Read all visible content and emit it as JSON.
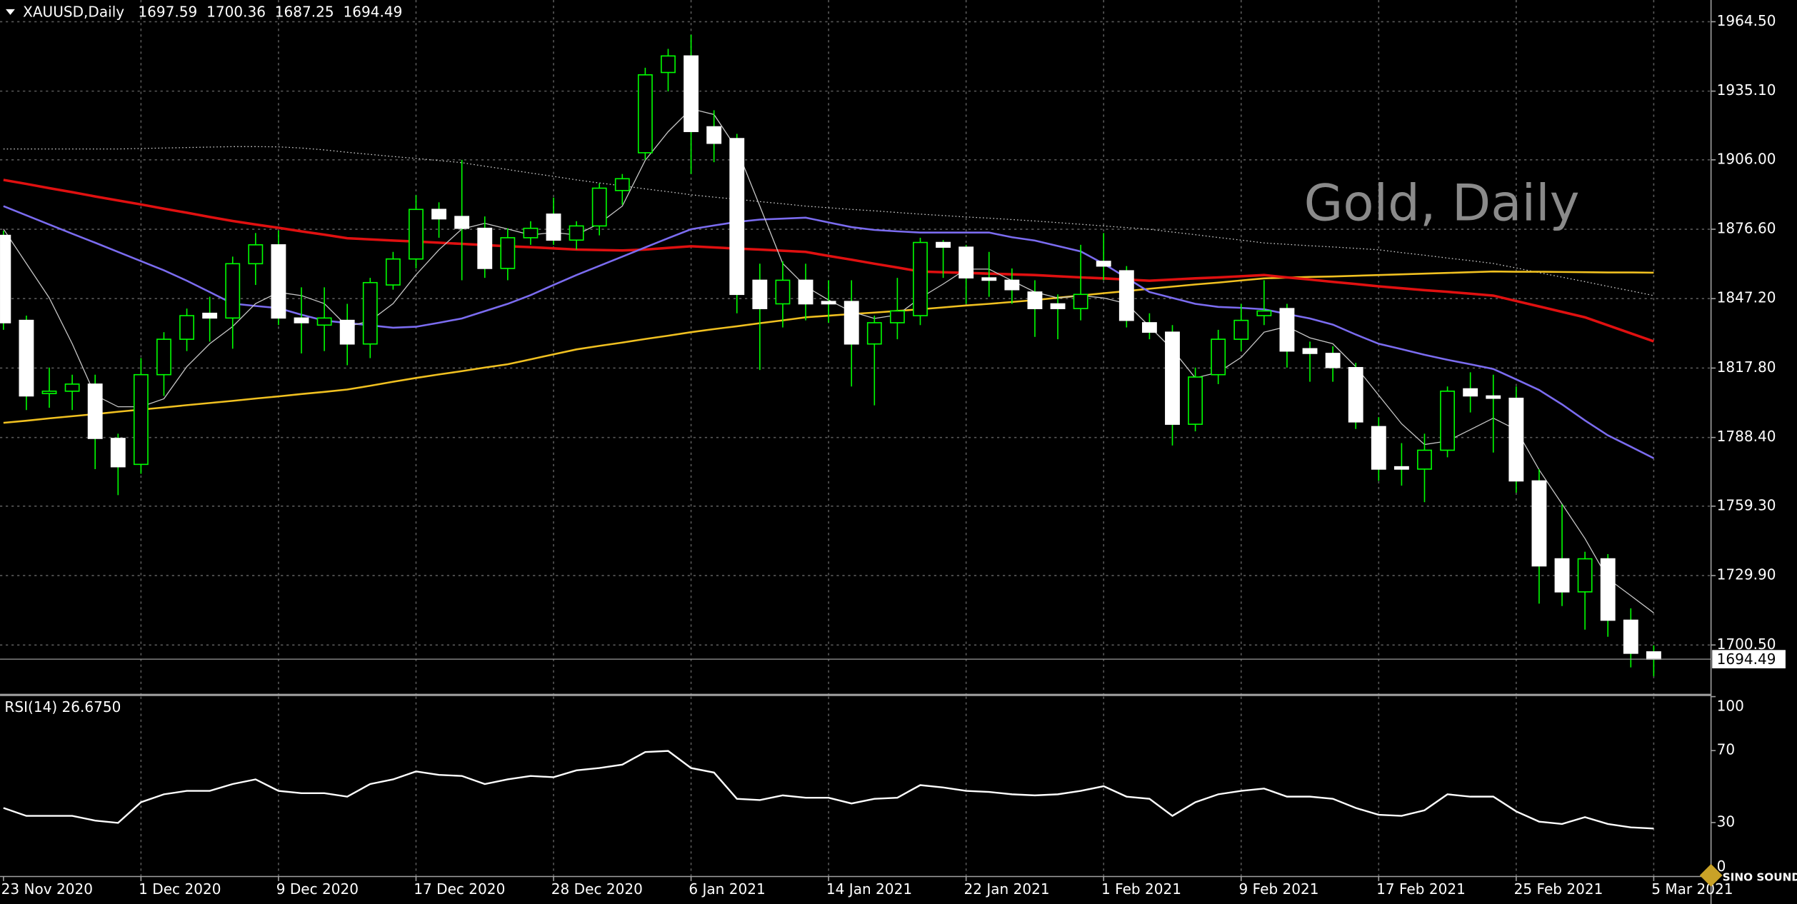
{
  "chart_data": [
    {
      "type": "candlestick",
      "title": "XAUUSD,Daily",
      "watermark": "Gold, Daily",
      "categories": [
        "23 Nov 2020",
        null,
        null,
        null,
        null,
        null,
        "1 Dec 2020",
        null,
        null,
        null,
        null,
        null,
        "9 Dec 2020",
        null,
        null,
        null,
        null,
        null,
        "17 Dec 2020",
        null,
        null,
        null,
        null,
        null,
        "28 Dec 2020",
        null,
        null,
        null,
        null,
        null,
        "6 Jan 2021",
        null,
        null,
        null,
        null,
        null,
        "14 Jan 2021",
        null,
        null,
        null,
        null,
        null,
        "22 Jan 2021",
        null,
        null,
        null,
        null,
        null,
        "1 Feb 2021",
        null,
        null,
        null,
        null,
        null,
        "9 Feb 2021",
        null,
        null,
        null,
        null,
        null,
        "17 Feb 2021",
        null,
        null,
        null,
        null,
        null,
        "25 Feb 2021",
        null,
        null,
        null,
        null,
        null,
        "5 Mar 2021"
      ],
      "open": [
        1874,
        1838,
        1807,
        1808,
        1811,
        1788,
        1777,
        1815,
        1830,
        1841,
        1839,
        1862,
        1870,
        1839,
        1836,
        1838,
        1828,
        1853,
        1864,
        1885,
        1882,
        1877,
        1860,
        1873,
        1883,
        1872,
        1878,
        1893,
        1909,
        1943,
        1950,
        1920,
        1915,
        1855,
        1845,
        1855,
        1846,
        1846,
        1828,
        1837,
        1840,
        1871,
        1869,
        1856,
        1855,
        1850,
        1845,
        1843,
        1863,
        1859,
        1837,
        1833,
        1794,
        1815,
        1830,
        1840,
        1843,
        1826,
        1824,
        1818,
        1793,
        1776,
        1775,
        1783,
        1809,
        1806,
        1805,
        1770,
        1737,
        1723,
        1737,
        1711,
        1697.59
      ],
      "high": [
        1876,
        1840,
        1818,
        1815,
        1815,
        1790,
        1822,
        1833,
        1843,
        1848,
        1865,
        1875,
        1876,
        1852,
        1852,
        1845,
        1856,
        1867,
        1891,
        1888,
        1906,
        1882,
        1877,
        1880,
        1890,
        1880,
        1896,
        1900,
        1945,
        1953,
        1959,
        1927,
        1917,
        1862,
        1863,
        1862,
        1855,
        1855,
        1840,
        1856,
        1873,
        1872,
        1870,
        1867,
        1860,
        1855,
        1849,
        1870,
        1875,
        1861,
        1841,
        1836,
        1818,
        1834,
        1845,
        1855,
        1845,
        1829,
        1827,
        1820,
        1797,
        1786,
        1790,
        1810,
        1816,
        1815,
        1810,
        1775,
        1760,
        1740,
        1739,
        1716,
        1700.36
      ],
      "low": [
        1834,
        1800,
        1801,
        1800,
        1775,
        1764,
        1773,
        1806,
        1825,
        1829,
        1826,
        1853,
        1836,
        1824,
        1825,
        1819,
        1822,
        1851,
        1860,
        1873,
        1855,
        1856,
        1855,
        1870,
        1870,
        1868,
        1874,
        1887,
        1906,
        1935,
        1900,
        1905,
        1841,
        1817,
        1835,
        1838,
        1837,
        1810,
        1802,
        1830,
        1836,
        1856,
        1845,
        1848,
        1845,
        1831,
        1830,
        1838,
        1855,
        1835,
        1830,
        1785,
        1791,
        1811,
        1825,
        1836,
        1818,
        1812,
        1812,
        1792,
        1770,
        1768,
        1761,
        1780,
        1799,
        1782,
        1765,
        1718,
        1717,
        1707,
        1704,
        1691,
        1687.25
      ],
      "close": [
        1837,
        1806,
        1808,
        1811,
        1788,
        1776,
        1815,
        1830,
        1840,
        1839,
        1862,
        1870,
        1839,
        1837,
        1839,
        1828,
        1854,
        1864,
        1885,
        1881,
        1877,
        1860,
        1873,
        1877,
        1872,
        1878,
        1894,
        1898,
        1942,
        1950,
        1918,
        1913,
        1849,
        1843,
        1855,
        1845,
        1845,
        1828,
        1837,
        1842,
        1871,
        1869,
        1856,
        1855,
        1851,
        1843,
        1843,
        1849,
        1861,
        1838,
        1833,
        1794,
        1814,
        1830,
        1838,
        1842,
        1825,
        1824,
        1818,
        1795,
        1775,
        1775,
        1783,
        1808,
        1806,
        1805,
        1770,
        1734,
        1723,
        1737,
        1711,
        1697,
        1694.49
      ],
      "colors": {
        "up": "#000000",
        "up_border": "#00ff00",
        "down": "#ffffff",
        "down_border": "#ffffff",
        "wick": "#00ff00"
      },
      "indicators": [
        {
          "color": "#d0d0d0",
          "style": "dotted",
          "width": 0.8,
          "values": [
            1910.6,
            1910.6,
            1910.6,
            1910.6,
            1910.6,
            1910.6,
            1910.8,
            1911.0,
            1911.2,
            1911.4,
            1911.6,
            1911.6,
            1911.5,
            1911.0,
            1910.2,
            1909.2,
            1908.3,
            1907.4,
            1906.6,
            1905.7,
            1904.8,
            1903.3,
            1901.9,
            1900.4,
            1899.0,
            1897.5,
            1896.2,
            1895.0,
            1893.7,
            1892.5,
            1891.2,
            1890.2,
            1889.3,
            1888.3,
            1887.4,
            1886.4,
            1885.7,
            1885.0,
            1884.4,
            1883.7,
            1883.0,
            1882.4,
            1881.8,
            1881.3,
            1880.7,
            1880.1,
            1879.4,
            1878.7,
            1878.0,
            1877.3,
            1876.6,
            1875.4,
            1874.3,
            1873.1,
            1872.0,
            1870.8,
            1870.2,
            1869.6,
            1869.1,
            1868.5,
            1867.9,
            1866.7,
            1865.6,
            1864.4,
            1863.3,
            1862.1,
            1860.2,
            1858.2,
            1856.3,
            1854.4,
            1852.4,
            1850.5,
            1848.5
          ]
        },
        {
          "color": "#f0c020",
          "style": "solid",
          "width": 1.6,
          "values": [
            1794.6,
            1795.5,
            1796.5,
            1797.4,
            1798.3,
            1799.3,
            1800.2,
            1801.1,
            1802.1,
            1803.0,
            1803.9,
            1804.9,
            1805.8,
            1806.8,
            1807.7,
            1808.7,
            1810.3,
            1812.0,
            1813.6,
            1815.1,
            1816.5,
            1818.0,
            1819.4,
            1821.5,
            1823.6,
            1825.7,
            1827.2,
            1828.6,
            1830.1,
            1831.5,
            1833.0,
            1834.3,
            1835.5,
            1836.8,
            1838.0,
            1839.3,
            1840.0,
            1840.7,
            1841.3,
            1842.0,
            1842.7,
            1843.5,
            1844.3,
            1845.0,
            1845.8,
            1846.6,
            1847.6,
            1848.5,
            1849.5,
            1850.4,
            1851.4,
            1852.3,
            1853.2,
            1854.0,
            1854.9,
            1855.8,
            1856.1,
            1856.4,
            1856.6,
            1856.9,
            1857.2,
            1857.5,
            1857.8,
            1858.1,
            1858.4,
            1858.7,
            1858.6,
            1858.6,
            1858.5,
            1858.4,
            1858.3,
            1858.3,
            1858.2
          ]
        },
        {
          "color": "#e01010",
          "style": "solid",
          "width": 2.2,
          "values": [
            1897.5,
            1895.8,
            1894.0,
            1892.3,
            1890.5,
            1888.8,
            1887.1,
            1885.3,
            1883.6,
            1881.8,
            1880.1,
            1878.6,
            1877.2,
            1875.7,
            1874.3,
            1872.8,
            1872.3,
            1871.8,
            1871.4,
            1870.9,
            1870.4,
            1869.9,
            1869.4,
            1869.0,
            1868.5,
            1868.0,
            1867.8,
            1867.6,
            1868.0,
            1868.7,
            1869.4,
            1868.9,
            1868.4,
            1868.0,
            1867.5,
            1867.0,
            1865.3,
            1863.7,
            1862.0,
            1860.4,
            1858.7,
            1858.4,
            1858.1,
            1857.8,
            1857.5,
            1857.2,
            1856.7,
            1856.2,
            1855.8,
            1855.3,
            1854.8,
            1855.3,
            1855.8,
            1856.2,
            1856.7,
            1857.2,
            1856.2,
            1855.3,
            1854.3,
            1853.4,
            1852.4,
            1851.6,
            1850.8,
            1850.1,
            1849.3,
            1848.5,
            1846.2,
            1843.9,
            1841.6,
            1839.3,
            1835.9,
            1832.5,
            1829.1
          ]
        },
        {
          "color": "#7b6cf0",
          "style": "solid",
          "width": 1.6,
          "values": [
            1886.4,
            1882.5,
            1878.6,
            1874.7,
            1870.9,
            1867.0,
            1863.1,
            1859.2,
            1854.8,
            1850.0,
            1845.1,
            1844.1,
            1843.2,
            1840.4,
            1837.9,
            1836.9,
            1835.9,
            1834.9,
            1835.3,
            1837.0,
            1838.8,
            1841.9,
            1845.0,
            1848.7,
            1853.0,
            1857.2,
            1861.1,
            1865.0,
            1868.9,
            1872.8,
            1876.6,
            1878.2,
            1879.7,
            1880.7,
            1881.1,
            1881.5,
            1879.5,
            1877.5,
            1876.3,
            1875.7,
            1875.2,
            1875.2,
            1875.2,
            1875.2,
            1873.2,
            1871.8,
            1869.5,
            1867.2,
            1862.0,
            1856.0,
            1850.0,
            1847.5,
            1845.0,
            1843.7,
            1843.3,
            1842.7,
            1840.7,
            1838.8,
            1836.2,
            1832.0,
            1828.1,
            1825.8,
            1823.4,
            1821.3,
            1819.4,
            1817.4,
            1813.0,
            1808.5,
            1802.4,
            1795.6,
            1789.3,
            1784.5,
            1779.6
          ]
        },
        {
          "color": "#c8c8c8",
          "style": "solid",
          "width": 0.8,
          "values": [
            1876.7,
            1862.1,
            1847.5,
            1828.1,
            1806.3,
            1801.4,
            1801.4,
            1804.8,
            1818.4,
            1828.1,
            1835.4,
            1845.1,
            1849.9,
            1848.5,
            1845.1,
            1835.4,
            1837.8,
            1845.1,
            1857.3,
            1867.9,
            1876.7,
            1879.1,
            1876.7,
            1874.2,
            1875.2,
            1874.2,
            1879.1,
            1886.4,
            1905.8,
            1917.9,
            1927.6,
            1925.2,
            1910.6,
            1886.4,
            1862.1,
            1852.4,
            1846.6,
            1841.7,
            1838.8,
            1840.3,
            1847.5,
            1853.4,
            1859.7,
            1859.7,
            1854.8,
            1850.0,
            1847.5,
            1848.5,
            1847.5,
            1845.1,
            1835.4,
            1825.7,
            1813.6,
            1816.0,
            1822.3,
            1833.0,
            1835.4,
            1830.6,
            1828.1,
            1818.4,
            1806.3,
            1794.2,
            1785.4,
            1786.9,
            1791.7,
            1796.6,
            1791.7,
            1774.7,
            1760.2,
            1745.6,
            1728.6,
            1721.4,
            1714.1
          ]
        }
      ],
      "ylim": [
        1679.6,
        1973.7
      ],
      "yticks": [
        {
          "value": 1964.5,
          "label": "1964.50"
        },
        {
          "value": 1935.1,
          "label": "1935.10"
        },
        {
          "value": 1906,
          "label": "1906.00"
        },
        {
          "value": 1876.6,
          "label": "1876.60"
        },
        {
          "value": 1847.2,
          "label": "1847.20"
        },
        {
          "value": 1817.8,
          "label": "1817.80"
        },
        {
          "value": 1788.4,
          "label": "1788.40"
        },
        {
          "value": 1759.3,
          "label": "1759.30"
        },
        {
          "value": 1729.9,
          "label": "1729.90"
        },
        {
          "value": 1700.5,
          "label": "1700.50"
        }
      ],
      "grid": true,
      "last_price_line": "#9a9a9a"
    },
    {
      "type": "line",
      "title": "RSI(14) 26.6750",
      "color": "#ffffff",
      "values": [
        38.1,
        33.7,
        33.7,
        33.7,
        31.1,
        29.8,
        41.3,
        45.7,
        47.6,
        47.6,
        51.4,
        54.0,
        47.6,
        46.3,
        46.3,
        44.4,
        51.4,
        54.0,
        58.4,
        56.5,
        55.9,
        51.4,
        54.0,
        55.9,
        55.2,
        59.0,
        60.3,
        62.2,
        69.2,
        69.8,
        60.3,
        57.8,
        43.2,
        42.5,
        45.1,
        43.8,
        43.8,
        40.6,
        43.2,
        43.8,
        50.8,
        49.5,
        47.6,
        47.0,
        45.7,
        45.1,
        45.7,
        47.6,
        50.2,
        44.4,
        43.2,
        33.7,
        41.3,
        45.7,
        47.6,
        48.9,
        44.4,
        44.4,
        43.2,
        38.1,
        34.3,
        33.7,
        36.8,
        45.7,
        44.4,
        44.4,
        36.2,
        30.5,
        29.2,
        33.0,
        29.2,
        27.3,
        26.675
      ],
      "ylim": [
        0,
        100
      ],
      "yticks": [
        100,
        70,
        30,
        0
      ],
      "grid": "vertical"
    }
  ],
  "logo": {
    "text": "SINO SOUND"
  }
}
